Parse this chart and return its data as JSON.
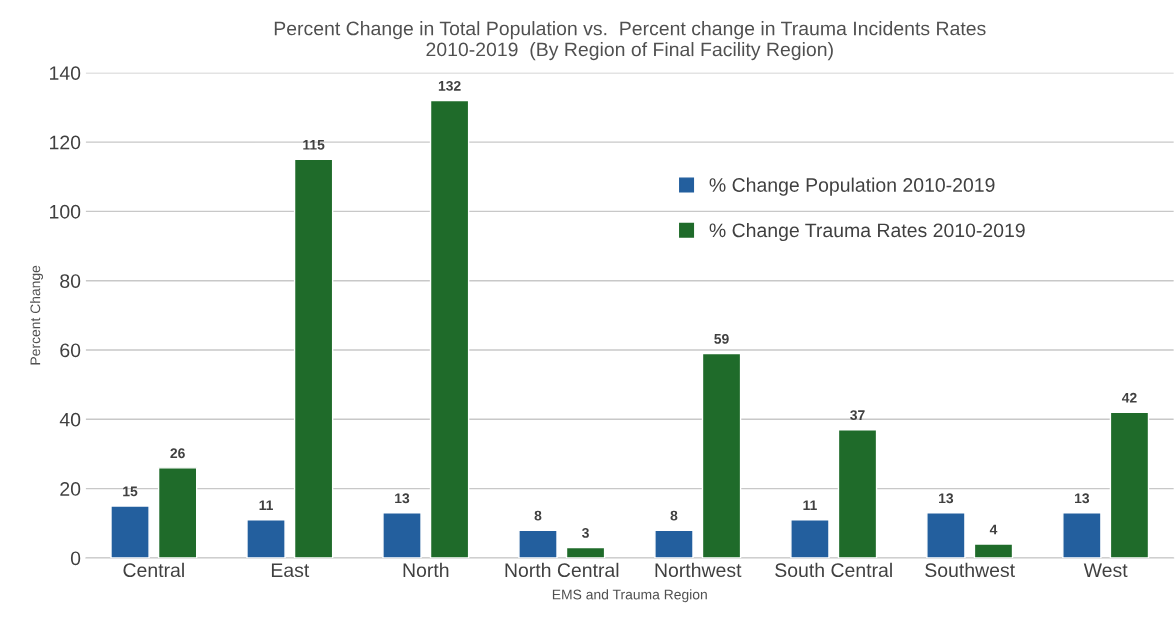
{
  "chart_data": {
    "type": "bar",
    "title": "Percent Change in Total Population vs.  Percent change in Trauma Incidents Rates\n2010-2019  (By Region of Final Facility Region)",
    "xlabel": "EMS and Trauma Region",
    "ylabel": "Percent Change",
    "categories": [
      "Central",
      "East",
      "North",
      "North Central",
      "Northwest",
      "South Central",
      "Southwest",
      "West"
    ],
    "series": [
      {
        "name": "% Change Population 2010-2019",
        "color": "#235f9e",
        "values": [
          15,
          11,
          13,
          8,
          8,
          11,
          13,
          13
        ]
      },
      {
        "name": "% Change Trauma Rates 2010-2019",
        "color": "#1f6b2a",
        "values": [
          26,
          115,
          132,
          3,
          59,
          37,
          4,
          42
        ]
      }
    ],
    "ylim": [
      0,
      140
    ],
    "yticks": [
      0,
      20,
      40,
      60,
      80,
      100,
      120,
      140
    ],
    "grid": "y",
    "legend": "top right",
    "data_labels": true
  }
}
